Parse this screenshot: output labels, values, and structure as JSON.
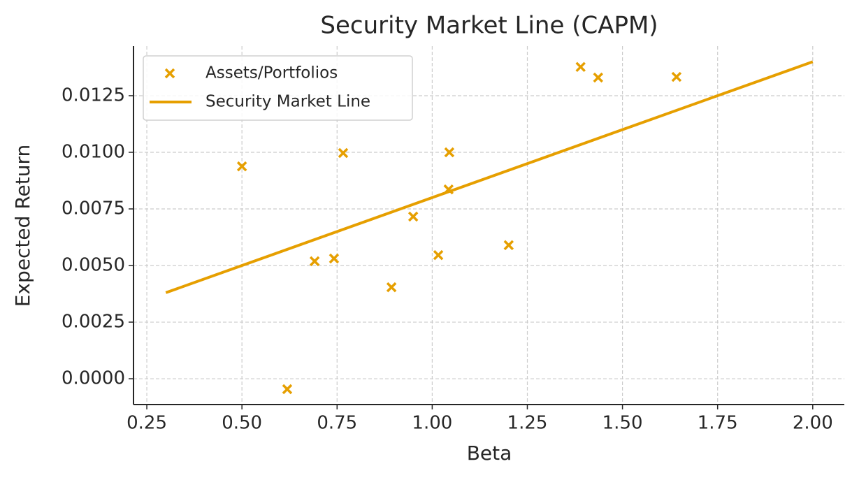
{
  "chart_data": {
    "type": "scatter",
    "title": "Security Market Line (CAPM)",
    "x_label": "Beta",
    "y_label": "Expected Return",
    "xlim": [
      0.215,
      2.083
    ],
    "ylim": [
      -0.00114,
      0.01469
    ],
    "xticks": [
      0.25,
      {
        "value": 0.5,
        "label": "0.50"
      },
      0.75,
      {
        "value": 1,
        "label": "1.00"
      },
      1.25,
      {
        "value": 1.5,
        "label": "1.50"
      },
      1.75,
      {
        "value": 2,
        "label": "2.00"
      }
    ],
    "yticks": [
      {
        "value": 0,
        "label": "0.0000"
      },
      {
        "value": 0.0025,
        "label": "0.0025"
      },
      {
        "value": 0.005,
        "label": "0.0050"
      },
      {
        "value": 0.0075,
        "label": "0.0075"
      },
      {
        "value": 0.01,
        "label": "0.0100"
      },
      {
        "value": 0.0125,
        "label": "0.0125"
      }
    ],
    "grid": true,
    "legend": "upper left",
    "series": [
      {
        "name": "Assets/Portfolios",
        "mode": "markers",
        "color": "#e69f00",
        "x": [
          0.5,
          0.619,
          0.691,
          0.742,
          0.766,
          0.893,
          0.95,
          1.016,
          1.045,
          1.043,
          1.201,
          1.39,
          1.436,
          1.642
        ],
        "values": [
          0.00938,
          -0.00046,
          0.00519,
          0.00531,
          0.00997,
          0.00404,
          0.00716,
          0.00546,
          0.01,
          0.00836,
          0.0059,
          0.01377,
          0.0133,
          0.01333
        ]
      },
      {
        "name": "Security Market Line",
        "mode": "line",
        "color": "#e69f00",
        "x": [
          0.3,
          2.0
        ],
        "values": [
          0.0038,
          0.014
        ]
      }
    ]
  }
}
